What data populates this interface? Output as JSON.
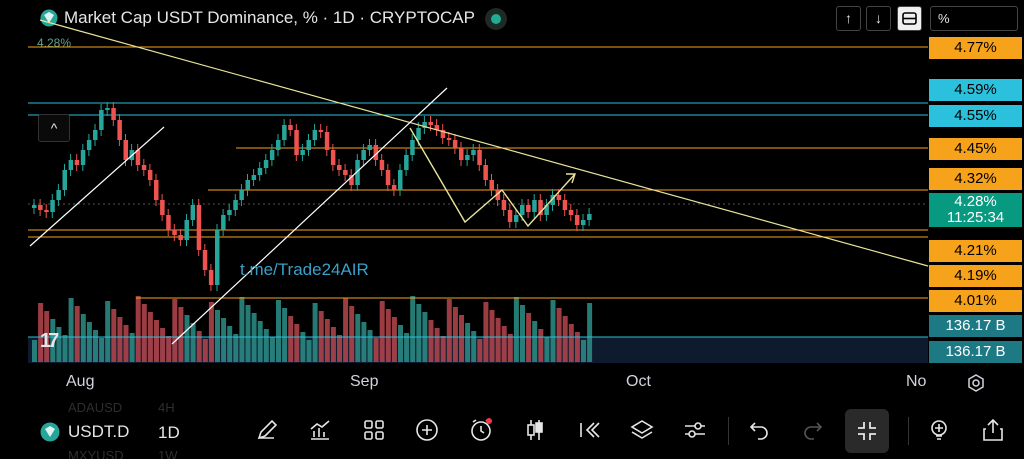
{
  "header": {
    "title": "Market Cap USDT Dominance, % · 1D · CRYPTOCAP",
    "prev_close": "4.28%",
    "up_arrow": "↑",
    "down_arrow": "↓",
    "scale_label": "%"
  },
  "price_labels": [
    {
      "text": "4.77%",
      "color": "orange"
    },
    {
      "text": "4.59%",
      "color": "cyan"
    },
    {
      "text": "4.55%",
      "color": "cyan"
    },
    {
      "text": "4.45%",
      "color": "orange"
    },
    {
      "text": "4.32%",
      "color": "orange"
    },
    {
      "text": "4.28%",
      "color": "teal"
    },
    {
      "text": "11:25:34",
      "color": "teal"
    },
    {
      "text": "4.21%",
      "color": "orange"
    },
    {
      "text": "4.19%",
      "color": "orange"
    },
    {
      "text": "4.01%",
      "color": "orange"
    },
    {
      "text": "136.17 B",
      "color": "vol"
    },
    {
      "text": "136.17 B",
      "color": "vol"
    }
  ],
  "watermark": "t.me/Trade24AIR",
  "tv_logo": "17",
  "collapse_arrow": "^",
  "x_axis": [
    "Aug",
    "Sep",
    "Oct",
    "No"
  ],
  "ghost_rows": [
    {
      "symbol": "ADAUSD",
      "interval": "4H"
    },
    {
      "symbol": "MXYUSD",
      "interval": "1W"
    }
  ],
  "toolbar": {
    "symbol": "USDT.D",
    "interval": "1D",
    "tools": [
      "pencil-icon",
      "indicators-icon",
      "templates-icon",
      "add-icon",
      "alert-icon",
      "candle-type-icon",
      "replay-icon",
      "layers-icon",
      "settings-sliders-icon",
      "undo-icon",
      "redo-icon",
      "fullscreen-exit-icon",
      "lightbulb-icon",
      "share-icon"
    ]
  },
  "colors": {
    "up": "#26a69a",
    "down": "#ef5350",
    "accent_orange": "#f7a21b",
    "accent_cyan": "#2bc0dc",
    "trend_line": "#e8e39a"
  }
}
